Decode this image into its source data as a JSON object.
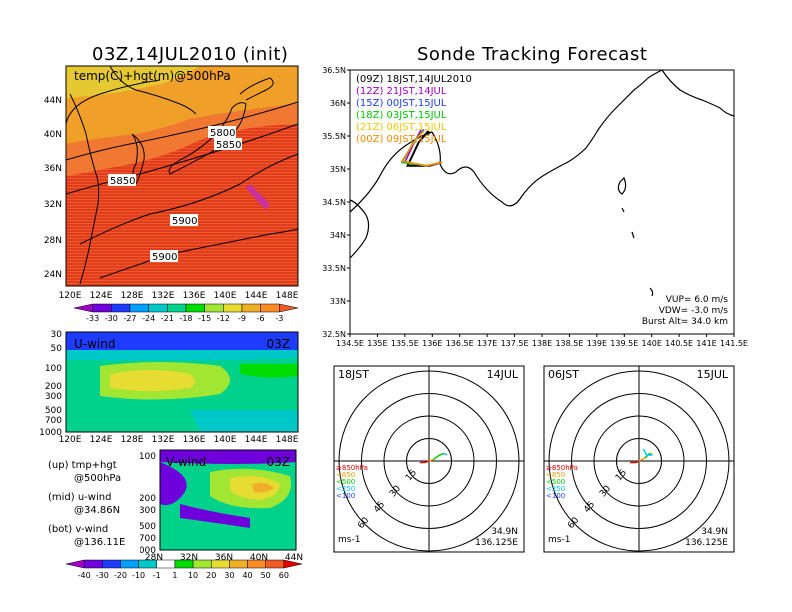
{
  "left_title": "03Z,14JUL2010 (init)",
  "right_title": "Sonde Tracking Forecast",
  "top_map": {
    "label": "temp(C)+hgt(m)@500hPa",
    "lat_ticks": [
      "44N",
      "40N",
      "36N",
      "32N",
      "28N",
      "24N"
    ],
    "lon_ticks": [
      "120E",
      "124E",
      "128E",
      "132E",
      "136E",
      "140E",
      "144E",
      "148E"
    ],
    "contours": [
      "5800",
      "5850",
      "5850",
      "5900",
      "5900"
    ],
    "colorbar": [
      "-33",
      "-30",
      "-27",
      "-24",
      "-21",
      "-18",
      "-15",
      "-12",
      "-9",
      "-6",
      "-3"
    ],
    "colorbar_colors": [
      "#a000c8",
      "#6e00dc",
      "#1e3cff",
      "#00a0ff",
      "#00c8c8",
      "#00d28c",
      "#00dc00",
      "#a0e632",
      "#e6dc32",
      "#f0af28",
      "#fa8c28",
      "#f05a28"
    ]
  },
  "uwind": {
    "label": "U-wind",
    "time": "03Z",
    "p_ticks": [
      "30",
      "50",
      "100",
      "200",
      "300",
      "500",
      "700",
      "1000"
    ],
    "lon_ticks": [
      "120E",
      "124E",
      "128E",
      "132E",
      "136E",
      "140E",
      "144E",
      "148E"
    ]
  },
  "vwind": {
    "label": "V-wind",
    "time": "03Z",
    "p_ticks": [
      "100",
      "200",
      "300",
      "500",
      "700",
      "1000"
    ],
    "lat_ticks": [
      "28N",
      "32N",
      "36N",
      "40N",
      "44N"
    ],
    "colorbar": [
      "-40",
      "-30",
      "-20",
      "-10",
      "-1",
      "1",
      "10",
      "20",
      "30",
      "40",
      "50",
      "60"
    ],
    "colorbar_colors": [
      "#a000c8",
      "#6e00dc",
      "#1e3cff",
      "#00a0ff",
      "#00c8c8",
      "#ffffff",
      "#00dc00",
      "#a0e632",
      "#e6dc32",
      "#f0af28",
      "#fa8c28",
      "#f05a28",
      "#e60000"
    ]
  },
  "notes": [
    {
      "a": "(up) tmp+hgt",
      "b": "@500hPa"
    },
    {
      "a": "(mid) u-wind",
      "b": "@34.86N"
    },
    {
      "a": "(bot) v-wind",
      "b": "@136.11E"
    }
  ],
  "track": {
    "legend": [
      {
        "text": "(09Z)  18JST,14JUL2010",
        "color": "#000000"
      },
      {
        "text": "(12Z)  21JST,14JUL",
        "color": "#a000c8"
      },
      {
        "text": "(15Z)  00JST,15JUL",
        "color": "#1e3cff"
      },
      {
        "text": "(18Z)  03JST,15JUL",
        "color": "#00c800"
      },
      {
        "text": "(21Z)  06JST,15JUL",
        "color": "#f0c800"
      },
      {
        "text": "(00Z)  09JST,15JUL",
        "color": "#f08c00"
      }
    ],
    "lat_ticks": [
      "36.5N",
      "36N",
      "35.5N",
      "35N",
      "34.5N",
      "34N",
      "33.5N",
      "33N",
      "32.5N"
    ],
    "lon_ticks": [
      "134.5E",
      "135E",
      "135.5E",
      "136E",
      "136.5E",
      "137E",
      "137.5E",
      "138E",
      "138.5E",
      "139E",
      "139.5E",
      "140E",
      "140.5E",
      "141E",
      "141.5E"
    ],
    "info": [
      "VUP=  6.0  m/s",
      "VDW=  -3.0  m/s",
      "Burst Alt=  34.0  km"
    ]
  },
  "hodo_left": {
    "time": "18JST",
    "date": "14JUL",
    "rings": [
      "15",
      "30",
      "45",
      "60"
    ],
    "legend": [
      "≥850hPa",
      "<850",
      "<500",
      "<250",
      "<100"
    ],
    "unit": "ms-1",
    "lat": "34.9N",
    "lon": "136.125E"
  },
  "hodo_right": {
    "time": "06JST",
    "date": "15JUL",
    "rings": [
      "15",
      "30",
      "45",
      "60"
    ],
    "legend": [
      "≥850hPa",
      "<850",
      "<500",
      "<250",
      "<100"
    ],
    "unit": "ms-1",
    "lat": "34.9N",
    "lon": "136.125E"
  },
  "hodo_legend_colors": [
    "#e60000",
    "#f0a000",
    "#00c800",
    "#00c8ff",
    "#1e3cff"
  ],
  "chart_data": [
    {
      "type": "heatmap",
      "title": "03Z,14JUL2010 (init)",
      "subtitle": "temp(C)+hgt(m)@500hPa",
      "xlim": [
        120,
        150
      ],
      "ylim": [
        22,
        47
      ],
      "colorbar_levels": [
        -33,
        -30,
        -27,
        -24,
        -21,
        -18,
        -15,
        -12,
        -9,
        -6,
        -3
      ],
      "contour_labels": [
        5800,
        5850,
        5850,
        5900,
        5900
      ]
    },
    {
      "type": "line",
      "title": "Sonde Tracking Forecast",
      "xlim": [
        134.5,
        141.5
      ],
      "ylim": [
        32.5,
        36.5
      ],
      "series": [
        {
          "name": "(09Z) 18JST,14JUL2010",
          "x": [
            136.17,
            135.95,
            135.55,
            135.75,
            135.9
          ],
          "y": [
            35.1,
            35.05,
            35.05,
            35.4,
            35.55
          ]
        },
        {
          "name": "(12Z) 21JST,14JUL",
          "x": [
            136.17,
            135.9,
            135.5,
            135.7,
            135.8
          ],
          "y": [
            35.1,
            35.05,
            35.1,
            35.45,
            35.6
          ]
        },
        {
          "name": "(15Z) 00JST,15JUL",
          "x": [
            136.17,
            135.9,
            135.45,
            135.7,
            135.85
          ],
          "y": [
            35.1,
            35.05,
            35.1,
            35.45,
            35.6
          ]
        },
        {
          "name": "(18Z) 03JST,15JUL",
          "x": [
            136.17,
            135.9,
            135.45,
            135.65,
            135.8
          ],
          "y": [
            35.1,
            35.05,
            35.1,
            35.4,
            35.55
          ]
        },
        {
          "name": "(21Z) 06JST,15JUL",
          "x": [
            136.17,
            135.9,
            135.45,
            135.7,
            135.85
          ],
          "y": [
            35.1,
            35.05,
            35.12,
            35.45,
            35.58
          ]
        },
        {
          "name": "(00Z) 09JST,15JUL",
          "x": [
            136.17,
            135.9,
            135.45,
            135.7,
            135.85
          ],
          "y": [
            35.1,
            35.05,
            35.12,
            35.45,
            35.58
          ]
        }
      ],
      "VUP": 6.0,
      "VDW": -3.0,
      "burst_alt_km": 34.0
    },
    {
      "type": "line",
      "title": "18JST 14JUL",
      "rings": [
        15,
        30,
        45,
        60
      ],
      "lat": "34.9N",
      "lon": "136.125E",
      "series": [
        {
          "name": "≥850hPa",
          "u": [
            -6,
            -3,
            0
          ],
          "v": [
            -1,
            -1,
            0
          ]
        },
        {
          "name": "<850",
          "u": [
            0,
            3
          ],
          "v": [
            0,
            1
          ]
        },
        {
          "name": "<500",
          "u": [
            3,
            7,
            10
          ],
          "v": [
            1,
            4,
            5
          ]
        },
        {
          "name": "<250",
          "u": [
            10,
            12
          ],
          "v": [
            5,
            4
          ]
        }
      ]
    },
    {
      "type": "line",
      "title": "06JST 15JUL",
      "rings": [
        15,
        30,
        45,
        60
      ],
      "lat": "34.9N",
      "lon": "136.125E",
      "series": [
        {
          "name": "≥850hPa",
          "u": [
            -6,
            -2,
            0
          ],
          "v": [
            -1,
            -1,
            0
          ]
        },
        {
          "name": "<850",
          "u": [
            0,
            4
          ],
          "v": [
            0,
            2
          ]
        },
        {
          "name": "<500",
          "u": [
            4,
            7,
            9
          ],
          "v": [
            2,
            5,
            4
          ]
        },
        {
          "name": "<250",
          "u": [
            9,
            5,
            3
          ],
          "v": [
            4,
            4,
            8
          ]
        }
      ]
    }
  ]
}
